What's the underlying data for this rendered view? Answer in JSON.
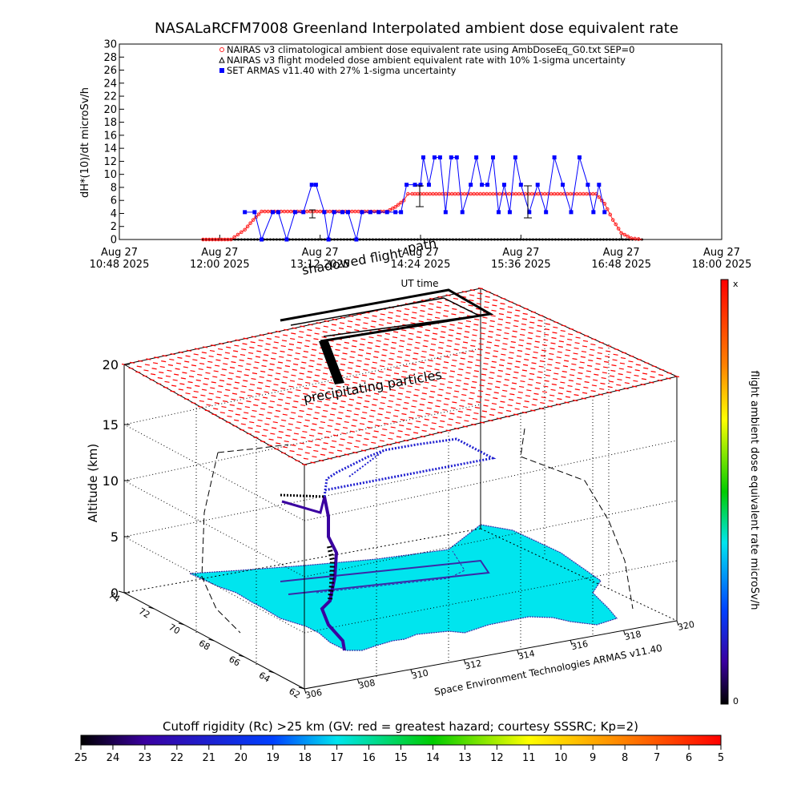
{
  "title": "NASALaRCFM7008  Greenland Interpolated ambient dose equivalent rate",
  "colors": {
    "nairas_clim": "#ff2020",
    "nairas_flight": "#000000",
    "armas": "#0000ff",
    "grid_red": "#ff0000",
    "map_fill": "#00e5ee"
  },
  "chart_data": [
    {
      "type": "line",
      "ylabel": "dH*(10)/dt microSv/h",
      "xlabel": "UT time",
      "ylim": [
        0,
        30
      ],
      "y_ticks": [
        0,
        2,
        4,
        6,
        8,
        10,
        12,
        14,
        16,
        18,
        20,
        22,
        24,
        26,
        28,
        30
      ],
      "x_ticks": [
        {
          "l1": "Aug 27",
          "l2": "10:48 2025"
        },
        {
          "l1": "Aug 27",
          "l2": "12:00 2025"
        },
        {
          "l1": "Aug 27",
          "l2": "13:12 2025"
        },
        {
          "l1": "Aug 27",
          "l2": "14:24 2025"
        },
        {
          "l1": "Aug 27",
          "l2": "15:36 2025"
        },
        {
          "l1": "Aug 27",
          "l2": "16:48 2025"
        },
        {
          "l1": "Aug 27",
          "l2": "18:00 2025"
        }
      ],
      "series": [
        {
          "name": "NAIRAS v3 climatological ambient dose equivalent rate using AmbDoseEq_G0.txt SEP=0",
          "x": [
            "11:48",
            "12:08",
            "12:18",
            "12:24",
            "12:30",
            "13:12",
            "14:00",
            "14:06",
            "14:12",
            "14:15",
            "14:18",
            "14:24",
            "15:00",
            "16:00",
            "16:30",
            "16:36",
            "16:42",
            "16:48",
            "16:55",
            "17:03"
          ],
          "values": [
            0,
            0,
            1.5,
            3,
            4.3,
            4.3,
            4.3,
            5,
            6,
            7,
            7,
            7,
            7,
            7,
            7,
            5.5,
            3,
            1,
            0.2,
            0
          ]
        },
        {
          "name": "NAIRAS v3 flight modeled dose ambient equivalent rate with 10% 1-sigma uncertainty",
          "x": [
            "11:48",
            "17:03"
          ],
          "values": [
            0,
            0
          ]
        },
        {
          "name": "SET ARMAS v11.40 with 27% 1-sigma uncertainty",
          "x": [
            "12:18",
            "12:25",
            "12:30",
            "12:38",
            "12:42",
            "12:48",
            "12:54",
            "13:00",
            "13:06",
            "13:09",
            "13:15",
            "13:18",
            "13:22",
            "13:28",
            "13:32",
            "13:38",
            "13:42",
            "13:48",
            "13:54",
            "14:00",
            "14:06",
            "14:10",
            "14:14",
            "14:20",
            "14:24",
            "14:26",
            "14:30",
            "14:34",
            "14:38",
            "14:42",
            "14:46",
            "14:50",
            "14:54",
            "15:00",
            "15:04",
            "15:08",
            "15:12",
            "15:16",
            "15:20",
            "15:24",
            "15:28",
            "15:32",
            "15:36",
            "15:42",
            "15:48",
            "15:54",
            "16:00",
            "16:06",
            "16:12",
            "16:18",
            "16:24",
            "16:28",
            "16:32",
            "16:36"
          ],
          "values": [
            4.2,
            4.2,
            0,
            4.2,
            4.2,
            0,
            4.2,
            4.2,
            8.4,
            8.4,
            4.2,
            0,
            4.2,
            4.2,
            4.2,
            0,
            4.2,
            4.2,
            4.2,
            4.2,
            4.2,
            4.2,
            8.4,
            8.4,
            8.4,
            12.6,
            8.4,
            12.6,
            12.6,
            4.2,
            12.6,
            12.6,
            4.2,
            8.4,
            12.6,
            8.4,
            8.4,
            12.6,
            4.2,
            8.4,
            4.2,
            12.6,
            8.4,
            4.2,
            8.4,
            4.2,
            12.6,
            8.4,
            4.2,
            12.6,
            8.4,
            4.2,
            8.4,
            4.2
          ]
        }
      ]
    }
  ],
  "scene3d": {
    "ylabel": "Altitude (km)",
    "z_ticks": [
      "0",
      "5",
      "10",
      "15",
      "20"
    ],
    "lat_ticks": [
      "74",
      "72",
      "70",
      "68",
      "66",
      "64",
      "62"
    ],
    "lon_ticks": [
      "306",
      "308",
      "310",
      "312",
      "314",
      "316",
      "318",
      "320"
    ],
    "annotations": {
      "precip": "precipitating particles",
      "shadowed": "shadowed flight",
      "path": "path",
      "credit": "Space Environment Technologies ARMAS v11.40"
    }
  },
  "colorbar_right": {
    "label": "flight ambient dose equivalent rate microSv/h",
    "top": "x",
    "bottom": "0"
  },
  "colorbar_bottom": {
    "label": "Cutoff rigidity (Rc) >25 km (GV: red = greatest hazard; courtesy SSSRC; Kp=2)",
    "ticks": [
      "25",
      "24",
      "23",
      "22",
      "21",
      "20",
      "19",
      "18",
      "17",
      "16",
      "15",
      "14",
      "13",
      "12",
      "11",
      "10",
      "9",
      "8",
      "7",
      "6",
      "5"
    ]
  }
}
